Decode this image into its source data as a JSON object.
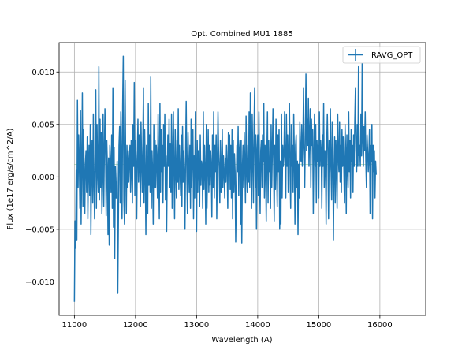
{
  "chart_data": {
    "type": "line",
    "title": "Opt. Combined MU1 1885",
    "xlabel": "Wavelength (A)",
    "ylabel": "Flux (1e17 erg/s/cm^2/A)",
    "xlim": [
      10750,
      16750
    ],
    "ylim": [
      -0.0132,
      0.0128
    ],
    "x_ticks": [
      11000,
      12000,
      13000,
      14000,
      15000,
      16000
    ],
    "x_tick_labels": [
      "11000",
      "12000",
      "13000",
      "14000",
      "15000",
      "16000"
    ],
    "y_ticks": [
      -0.01,
      -0.005,
      0.0,
      0.005,
      0.01
    ],
    "y_tick_labels": [
      "−0.010",
      "−0.005",
      "0.000",
      "0.005",
      "0.010"
    ],
    "grid": true,
    "legend_position": "top-right",
    "series": [
      {
        "name": "RAVG_OPT",
        "color": "#1f77b4",
        "x_start": 11000,
        "x_step": 10,
        "y": [
          -0.0119,
          -0.0042,
          -0.0068,
          0.0007,
          -0.006,
          0.0073,
          -0.001,
          0.004,
          0.0015,
          -0.003,
          0.0063,
          -0.0045,
          0.001,
          0.008,
          -0.0028,
          0.0045,
          0.0005,
          -0.0035,
          0.0012,
          0.0025,
          -0.0015,
          0.0038,
          -0.004,
          0.0005,
          0.003,
          -0.0018,
          0.005,
          -0.0055,
          0.0005,
          0.0035,
          -0.0025,
          0.006,
          -0.0005,
          -0.004,
          0.002,
          0.0083,
          -0.003,
          0.005,
          0.0005,
          -0.0015,
          0.0105,
          -0.0022,
          0.0055,
          -0.001,
          0.0042,
          -0.0035,
          0.0003,
          0.006,
          -0.0028,
          0.002,
          0.0065,
          0.0025,
          -0.0037,
          0.0035,
          0.001,
          -0.0055,
          0.0018,
          -0.0065,
          0.003,
          0.0012,
          -0.0015,
          0.004,
          -0.003,
          0.0085,
          -0.0048,
          0.0028,
          -0.0078,
          0.001,
          -0.002,
          -0.002,
          0.0015,
          -0.0111,
          -0.0045,
          0.003,
          0.0048,
          -0.0025,
          0.0062,
          0.0015,
          -0.004,
          0.0068,
          0.0115,
          -0.0022,
          -0.0045,
          0.0092,
          0.001,
          -0.0035,
          0.003,
          -0.001,
          0.0025,
          -0.0005,
          0.0015,
          0.003,
          -0.0015,
          0.0035,
          0.0005,
          -0.0025,
          0.005,
          0.001,
          0.009,
          -0.0018,
          0.0035,
          0.0015,
          -0.004,
          0.002,
          0.0055,
          -0.0005,
          0.004,
          0.001,
          -0.0028,
          0.0052,
          0.0015,
          -0.0015,
          0.003,
          0.0085,
          -0.0025,
          0.0045,
          0.0005,
          -0.0055,
          0.003,
          0.0012,
          -0.0035,
          0.007,
          -0.0008,
          0.004,
          -0.0015,
          0.0095,
          -0.003,
          0.0025,
          0.0005,
          -0.0045,
          0.005,
          -0.001,
          0.0035,
          -0.001,
          0.003,
          0.0015,
          -0.002,
          0.006,
          0.001,
          -0.004,
          0.007,
          -0.0015,
          0.0045,
          0.0005,
          0.003,
          -0.0025,
          0.005,
          0.001,
          0.006,
          -0.0022,
          0.002,
          -0.0052,
          0.0008,
          0.004,
          0.001,
          0.0055,
          -0.001,
          0.0032,
          -0.0015,
          0.006,
          -0.003,
          0.0018,
          0.0062,
          0.0005,
          -0.004,
          0.0045,
          0.0008,
          -0.002,
          0.0035,
          -0.0005,
          0.0065,
          -0.0012,
          0.003,
          0.0005,
          -0.0018,
          0.004,
          -0.0028,
          0.0048,
          -0.0005,
          0.0025,
          0.0005,
          -0.005,
          0.002,
          0.0072,
          0.0005,
          -0.0035,
          0.0042,
          0.001,
          -0.0015,
          0.003,
          -0.003,
          0.0055,
          -0.001,
          0.0025,
          0.0045,
          -0.004,
          0.002,
          -0.002,
          0.0062,
          0.001,
          -0.0052,
          0.0035,
          -0.0015,
          0.0025,
          0.0008,
          -0.0028,
          0.004,
          -0.0008,
          0.0015,
          0.001,
          -0.003,
          0.0062,
          -0.0012,
          0.003,
          0.0005,
          -0.0045,
          0.005,
          -0.003,
          0.001,
          0.0045,
          -0.0015,
          0.003,
          -0.0008,
          0.0025,
          0.001,
          -0.0038,
          0.004,
          -0.001,
          0.0062,
          -0.002,
          0.003,
          0.0005,
          0.004,
          -0.004,
          0.0015,
          0.0062,
          0.0025,
          0.0008,
          -0.0025,
          0.0035,
          -0.0015,
          0.001,
          0.0045,
          -0.001,
          0.002,
          0.0005,
          -0.002,
          0.0018,
          -0.0005,
          0.003,
          0.001,
          -0.003,
          0.0042,
          0.0008,
          0.004,
          -0.0012,
          0.003,
          -0.002,
          0.0045,
          -0.004,
          0.0035,
          -0.0015,
          0.0022,
          0.0005,
          -0.0062,
          -0.0015,
          0.003,
          0.0005,
          0.0048,
          -0.0018,
          0.0025,
          0.0035,
          -0.0045,
          0.0035,
          -0.0063,
          0.0008,
          0.003,
          -0.001,
          0.0042,
          0.001,
          -0.0025,
          0.0058,
          0.0005,
          -0.0015,
          0.003,
          -0.0005,
          0.0062,
          -0.001,
          0.008,
          0.0015,
          -0.003,
          0.006,
          0.002,
          -0.0025,
          0.0045,
          0.0085,
          -0.001,
          0.004,
          -0.005,
          0.0025,
          0.004,
          -0.0018,
          0.0062,
          0.0005,
          -0.0035,
          0.0025,
          0.0035,
          -0.001,
          0.004,
          0.0015,
          0.007,
          -0.002,
          0.003,
          0.001,
          -0.0042,
          0.002,
          0.0062,
          -0.0025,
          0.0035,
          0.0005,
          0.001,
          -0.003,
          0.005,
          -0.001,
          0.0025,
          0.0065,
          0.0015,
          -0.0042,
          0.003,
          -0.0012,
          0.0055,
          0.0008,
          -0.0028,
          0.004,
          0.0005,
          0.0045,
          -0.005,
          0.0015,
          -0.0045,
          0.006,
          -0.002,
          0.003,
          0.001,
          0.002,
          0.0062,
          0.0015,
          -0.002,
          0.006,
          0.001,
          0.004,
          -0.0015,
          0.0025,
          0.007,
          0.0005,
          -0.003,
          0.005,
          0.001,
          0.003,
          -0.0015,
          0.006,
          0.002,
          -0.0045,
          0.003,
          0.004,
          -0.001,
          0.0015,
          -0.0055,
          0.0012,
          -0.002,
          0.0052,
          0.0018,
          0.0015,
          0.005,
          0.001,
          0.003,
          0.0085,
          0.0015,
          -0.001,
          0.004,
          0.0098,
          0.0025,
          0.0055,
          0.003,
          0.0075,
          0.001,
          0.004,
          0.0065,
          -0.001,
          0.0055,
          0.003,
          0.0045,
          -0.0035,
          0.002,
          0.006,
          0.001,
          0.005,
          -0.0025,
          0.0035,
          0.0015,
          0.003,
          -0.002,
          0.0062,
          0.001,
          0.0035,
          0.0025,
          -0.003,
          0.004,
          0.001,
          0.007,
          -0.001,
          0.0025,
          0.0015,
          -0.0045,
          0.003,
          0.006,
          0.0025,
          -0.004,
          0.0035,
          0.0005,
          0.0065,
          0.001,
          -0.0022,
          0.0052,
          0.0018,
          -0.006,
          0.001,
          0.0038,
          -0.0025,
          0.0035,
          0.0012,
          -0.003,
          0.006,
          0.002,
          0.0005,
          0.0052,
          -0.0005,
          0.003,
          -0.0015,
          0.0045,
          0.001,
          0.0038,
          0.001,
          -0.0025,
          0.005,
          0.0025,
          -0.0035,
          0.004,
          0.001,
          -0.001,
          0.0062,
          0.0005,
          0.0035,
          -0.002,
          0.0045,
          0.0015,
          0.003,
          -0.0015,
          0.004,
          0.001,
          0.0055,
          0.0085,
          0.0025,
          0.0005,
          0.005,
          0.001,
          0.0105,
          0.002,
          0.003,
          0.001,
          0.006,
          0.002,
          0.0108,
          0.0035,
          0.001,
          0.0048,
          0.0025,
          0.0062,
          0.0015,
          -0.001,
          0.004,
          0.0025,
          0.0005,
          0.002,
          0.0045,
          -0.0035,
          0.003,
          0.0015,
          0.005,
          -0.004,
          0.003,
          0.0005,
          0.0025,
          -0.002,
          0.0015,
          0.0002
        ]
      }
    ]
  }
}
